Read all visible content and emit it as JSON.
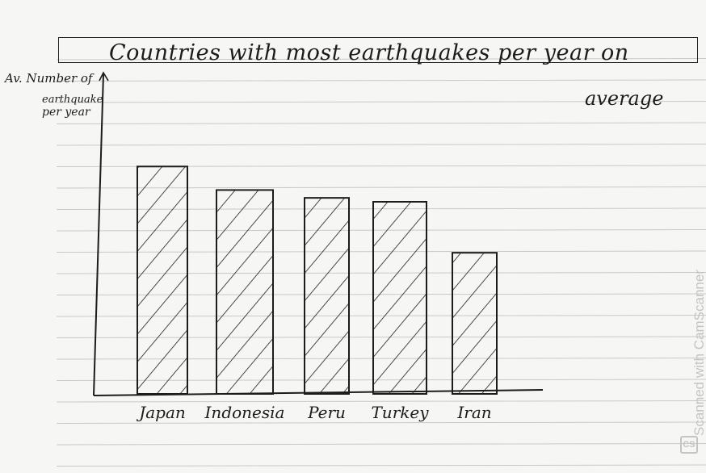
{
  "chart_data": {
    "type": "bar",
    "title": "Countries with most earthquakes per year on",
    "title_line2": "average",
    "ylabel_line1": "Av. Number of",
    "ylabel_line2": "earthquake",
    "ylabel_line3": "per year",
    "categories": [
      "Japan",
      "Indonesia",
      "Peru",
      "Turkey",
      "Iran"
    ],
    "values": [
      29,
      26,
      25,
      24.5,
      18
    ],
    "ylim": [
      0,
      35
    ],
    "grid": "ruled notebook lines",
    "bar_fill": "diagonal hatch",
    "legend": "none"
  },
  "watermark": {
    "text": "Scanned with CamScanner",
    "logo": "CS"
  },
  "colors": {
    "ink": "#1c1c1c",
    "paper": "#f6f6f4",
    "rule_lines": "#c9c9c9",
    "watermark": "#c4c4c4"
  }
}
